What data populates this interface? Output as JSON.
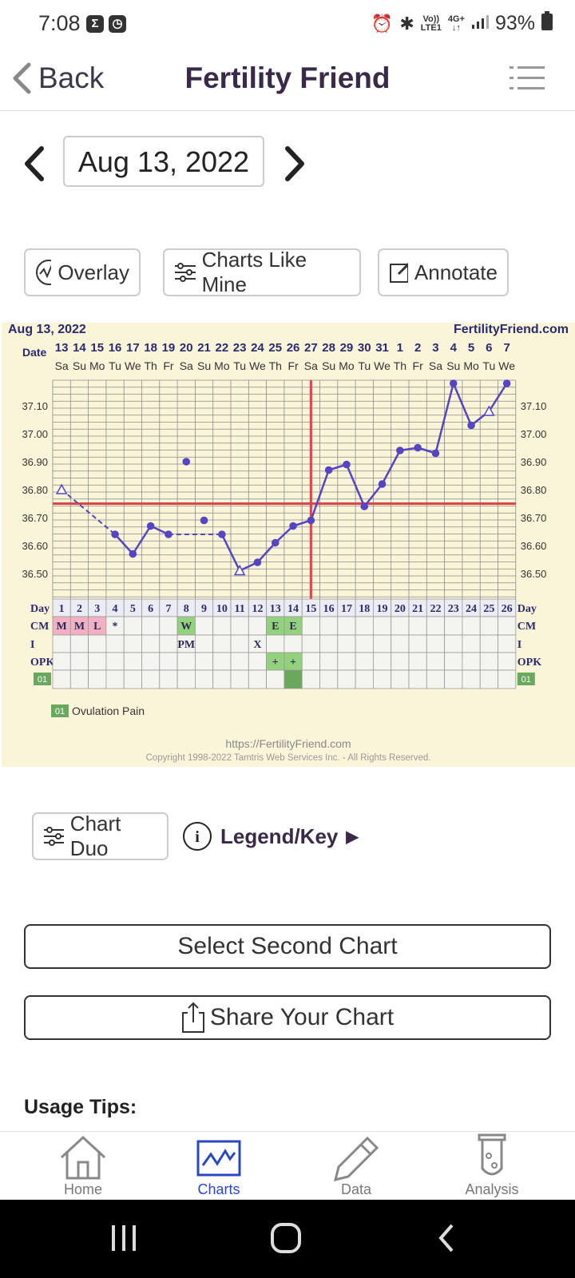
{
  "status_bar": {
    "time": "7:08",
    "battery": "93%",
    "net_top": "Vo))",
    "net_bottom": "LTE1",
    "net2_top": "4G+",
    "net2_bottom": "↓↑"
  },
  "header": {
    "back_label": "Back",
    "title": "Fertility Friend"
  },
  "date_nav": {
    "date": "Aug 13, 2022"
  },
  "actions": {
    "overlay": "Overlay",
    "charts_like_mine": "Charts Like Mine",
    "annotate": "Annotate"
  },
  "chart_data": {
    "type": "line",
    "header_date": "Aug 13, 2022",
    "brand": "FertilityFriend.com",
    "date_label": "Date",
    "day_label": "Day",
    "dates": [
      "13",
      "14",
      "15",
      "16",
      "17",
      "18",
      "19",
      "20",
      "21",
      "22",
      "23",
      "24",
      "25",
      "26",
      "27",
      "28",
      "29",
      "30",
      "31",
      "1",
      "2",
      "3",
      "4",
      "5",
      "6",
      "7"
    ],
    "weekdays": [
      "Sa",
      "Su",
      "Mo",
      "Tu",
      "We",
      "Th",
      "Fr",
      "Sa",
      "Su",
      "Mo",
      "Tu",
      "We",
      "Th",
      "Fr",
      "Sa",
      "Su",
      "Mo",
      "Tu",
      "We",
      "Th",
      "Fr",
      "Sa",
      "Su",
      "Mo",
      "Tu",
      "We"
    ],
    "cycle_days": [
      "1",
      "2",
      "3",
      "4",
      "5",
      "6",
      "7",
      "8",
      "9",
      "10",
      "11",
      "12",
      "13",
      "14",
      "15",
      "16",
      "17",
      "18",
      "19",
      "20",
      "21",
      "22",
      "23",
      "24",
      "25",
      "26"
    ],
    "y_ticks": [
      "37.10",
      "37.00",
      "36.90",
      "36.80",
      "36.70",
      "36.60",
      "36.50"
    ],
    "ylim": [
      36.45,
      37.2
    ],
    "temperatures": [
      36.8,
      null,
      null,
      36.64,
      36.57,
      36.67,
      36.64,
      36.9,
      36.69,
      36.64,
      36.51,
      36.54,
      36.61,
      36.67,
      36.69,
      36.87,
      36.89,
      36.74,
      36.82,
      36.94,
      36.95,
      36.93,
      37.18,
      37.03,
      37.08,
      37.18
    ],
    "open_markers": [
      1,
      11,
      25
    ],
    "discarded_points": [
      8,
      9
    ],
    "coverline": 36.75,
    "ovulation_day": 15,
    "cm_label": "CM",
    "i_label": "I",
    "opk_label": "OPK",
    "badge_code": "01",
    "cm": {
      "1": "M",
      "2": "M",
      "3": "L",
      "4": "*",
      "8": "W",
      "13": "E",
      "14": "E"
    },
    "intercourse": {
      "8": "PM",
      "12": "X"
    },
    "opk": {
      "13": "+",
      "14": "+"
    },
    "legend_text": "Ovulation Pain",
    "footer_url": "https://FertilityFriend.com",
    "footer_copyright": "Copyright 1998-2022 Tamtris Web Services Inc. - All Rights Reserved.",
    "colors": {
      "line": "#5545c2",
      "coverline": "#d9454b",
      "chart_bg": "#faf5d9",
      "grid": "#8a8a8a",
      "cm_pink": "#f2b0c2",
      "cm_green": "#93d17c",
      "opk_green": "#6aa85e",
      "date_text": "#2a2a6e"
    }
  },
  "lower": {
    "chart_duo": "Chart Duo",
    "legend_key": "Legend/Key",
    "select_second": "Select Second Chart",
    "share": "Share Your Chart",
    "usage_tips": "Usage Tips:"
  },
  "bottom_nav": {
    "home": "Home",
    "charts": "Charts",
    "data": "Data",
    "analysis": "Analysis",
    "active_color": "#2a47c2"
  }
}
